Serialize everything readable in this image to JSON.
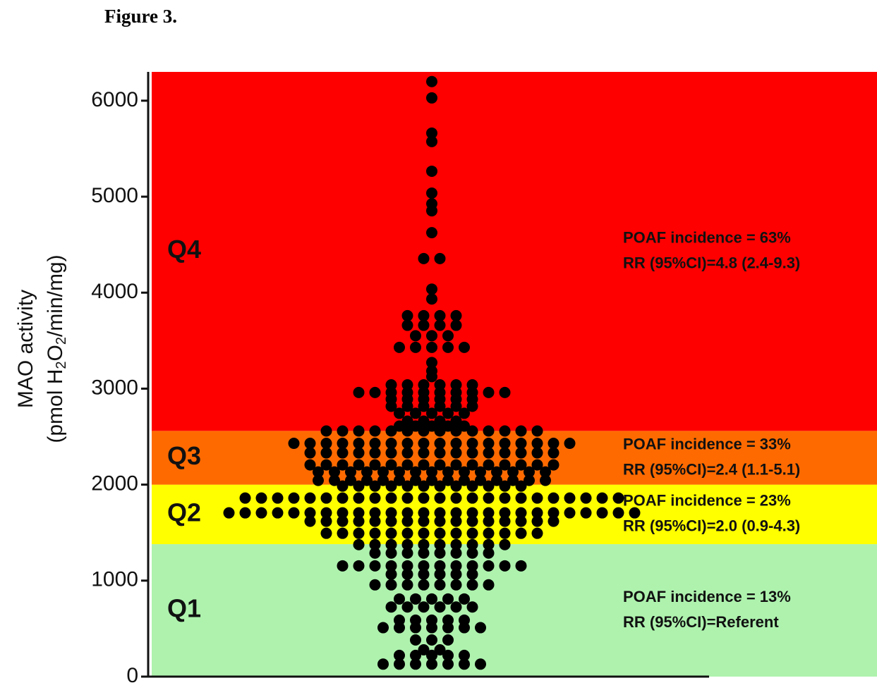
{
  "figure_label": "Figure 3.",
  "chart_data": {
    "type": "beeswarm",
    "ylabel_line1": "MAO activity",
    "ylabel_line2": [
      "(pmol H",
      "2",
      "O",
      "2",
      "/min/mg)"
    ],
    "ylim": [
      0,
      6300
    ],
    "yticks": [
      0,
      1000,
      2000,
      3000,
      4000,
      5000,
      6000
    ],
    "color": "#000000",
    "bands": [
      {
        "name": "Q1",
        "from": 0,
        "to": 1380,
        "color": "#aef2ae",
        "incidence": "POAF incidence = 13%",
        "rr": "RR (95%CI)=Referent"
      },
      {
        "name": "Q2",
        "from": 1380,
        "to": 2000,
        "color": "#ffff00",
        "incidence": "POAF incidence = 23%",
        "rr": "RR (95%CI)=2.0 (0.9-4.3)"
      },
      {
        "name": "Q3",
        "from": 2000,
        "to": 2560,
        "color": "#ff6a00",
        "incidence": "POAF incidence = 33%",
        "rr": "RR (95%CI)=2.4 (1.1-5.1)"
      },
      {
        "name": "Q4",
        "from": 2560,
        "to": 6300,
        "color": "#ff0000",
        "incidence": "POAF incidence = 63%",
        "rr": "RR (95%CI)=4.8 (2.4-9.3)"
      }
    ],
    "values": [
      6199,
      6029,
      5662,
      5574,
      5265,
      5037,
      4926,
      4853,
      4625,
      4355,
      4355,
      4037,
      3934,
      3760,
      3760,
      3760,
      3760,
      3660,
      3660,
      3660,
      3660,
      3551,
      3551,
      3551,
      3430,
      3430,
      3430,
      3430,
      3430,
      3272,
      3184,
      3125,
      3040,
      3040,
      3040,
      3040,
      3040,
      3040,
      2960,
      2960,
      2960,
      2960,
      2960,
      2960,
      2960,
      2960,
      2960,
      2960,
      2890,
      2890,
      2890,
      2890,
      2890,
      2890,
      2816,
      2816,
      2816,
      2816,
      2816,
      2816,
      2743,
      2743,
      2743,
      2743,
      2743,
      2662,
      2662,
      2662,
      2662,
      2610,
      2610,
      2610,
      2610,
      2610,
      2559,
      2559,
      2559,
      2559,
      2559,
      2559,
      2559,
      2559,
      2559,
      2559,
      2559,
      2559,
      2559,
      2559,
      2430,
      2430,
      2430,
      2430,
      2430,
      2430,
      2430,
      2430,
      2430,
      2430,
      2430,
      2430,
      2430,
      2430,
      2430,
      2430,
      2430,
      2430,
      2331,
      2331,
      2331,
      2331,
      2331,
      2331,
      2331,
      2331,
      2331,
      2331,
      2331,
      2331,
      2331,
      2331,
      2331,
      2331,
      2206,
      2206,
      2206,
      2206,
      2206,
      2206,
      2206,
      2206,
      2206,
      2206,
      2206,
      2206,
      2206,
      2206,
      2206,
      2206,
      2132,
      2132,
      2132,
      2132,
      2132,
      2132,
      2132,
      2132,
      2132,
      2132,
      2132,
      2132,
      2132,
      2132,
      2132,
      2044,
      2044,
      2044,
      2044,
      2044,
      2044,
      2044,
      2044,
      2044,
      2044,
      2044,
      2044,
      2044,
      2044,
      2044,
      1985,
      1985,
      1985,
      1985,
      1985,
      1985,
      1985,
      1985,
      1985,
      1985,
      1985,
      1985,
      1860,
      1860,
      1860,
      1860,
      1860,
      1860,
      1860,
      1860,
      1860,
      1860,
      1860,
      1860,
      1860,
      1860,
      1860,
      1860,
      1860,
      1860,
      1860,
      1860,
      1860,
      1860,
      1860,
      1860,
      1706,
      1706,
      1706,
      1706,
      1706,
      1706,
      1706,
      1706,
      1706,
      1706,
      1706,
      1706,
      1706,
      1706,
      1706,
      1706,
      1706,
      1706,
      1706,
      1706,
      1706,
      1706,
      1706,
      1706,
      1706,
      1706,
      1618,
      1618,
      1618,
      1618,
      1618,
      1618,
      1618,
      1618,
      1618,
      1618,
      1618,
      1618,
      1618,
      1618,
      1618,
      1618,
      1493,
      1493,
      1493,
      1493,
      1493,
      1493,
      1493,
      1493,
      1493,
      1493,
      1493,
      1493,
      1493,
      1493,
      1375,
      1375,
      1375,
      1375,
      1375,
      1375,
      1375,
      1375,
      1375,
      1375,
      1287,
      1287,
      1287,
      1287,
      1287,
      1287,
      1287,
      1287,
      1154,
      1154,
      1154,
      1154,
      1154,
      1154,
      1154,
      1154,
      1154,
      1154,
      1154,
      1154,
      1066,
      1066,
      1066,
      1066,
      1066,
      1066,
      956,
      956,
      956,
      956,
      956,
      956,
      956,
      956,
      809,
      809,
      809,
      809,
      809,
      725,
      725,
      725,
      725,
      725,
      725,
      588,
      588,
      588,
      588,
      588,
      510,
      510,
      510,
      510,
      510,
      510,
      510,
      382,
      382,
      382,
      279,
      279,
      221,
      221,
      221,
      221,
      221,
      130,
      130,
      130,
      130,
      130,
      130,
      130
    ]
  }
}
